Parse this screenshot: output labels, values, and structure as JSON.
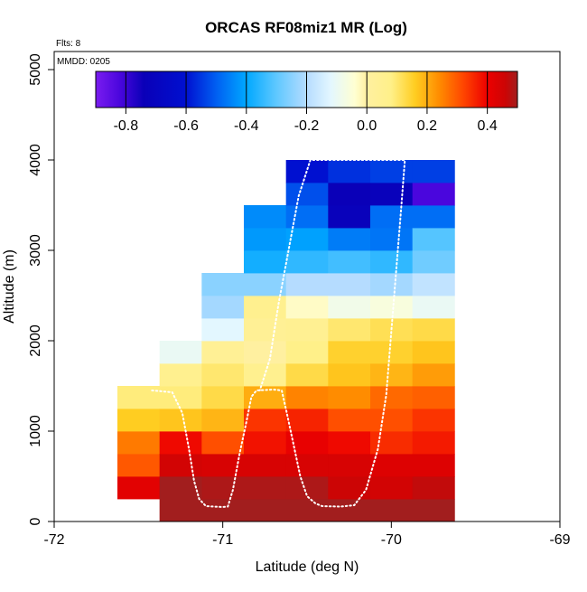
{
  "chart_data": {
    "type": "heatmap",
    "title": "ORCAS RF08miz1 MR (Log)",
    "annotations": {
      "flights": "Flts: 8",
      "date": "MMDD: 0205"
    },
    "xlabel": "Latitude (deg N)",
    "ylabel": "Altitude (m)",
    "xlim": [
      -72,
      -69
    ],
    "ylim": [
      0,
      5200
    ],
    "x_ticks": [
      -72,
      -71,
      -70,
      -69
    ],
    "y_ticks": [
      0,
      1000,
      2000,
      3000,
      4000,
      5000
    ],
    "cell_width_deg": 0.25,
    "cell_height_m": 250,
    "colorbar": {
      "min": -0.9,
      "max": 0.5,
      "ticks": [
        -0.8,
        -0.6,
        -0.4,
        -0.2,
        0.0,
        0.2,
        0.4
      ],
      "tick_labels": [
        "-0.8",
        "-0.6",
        "-0.4",
        "-0.2",
        "0.0",
        "0.2",
        "0.4"
      ],
      "stops": [
        [
          -0.9,
          "#7a1cf0"
        ],
        [
          -0.82,
          "#4a06dd"
        ],
        [
          -0.74,
          "#0a00b8"
        ],
        [
          -0.6,
          "#0010d0"
        ],
        [
          -0.5,
          "#005ff2"
        ],
        [
          -0.4,
          "#00a8ff"
        ],
        [
          -0.3,
          "#5fc8ff"
        ],
        [
          -0.2,
          "#b5dcff"
        ],
        [
          -0.12,
          "#e3f7ff"
        ],
        [
          -0.04,
          "#ffffd2"
        ],
        [
          0.0,
          "#fff0a0"
        ],
        [
          0.08,
          "#fff089"
        ],
        [
          0.16,
          "#ffcd21"
        ],
        [
          0.24,
          "#ff8c00"
        ],
        [
          0.32,
          "#ff4600"
        ],
        [
          0.4,
          "#ed0000"
        ],
        [
          0.46,
          "#cc0505"
        ],
        [
          0.5,
          "#a21e1e"
        ]
      ]
    },
    "cells": [
      {
        "lat": -71.5,
        "alt": 250,
        "v": 0.42
      },
      {
        "lat": -71.5,
        "alt": 500,
        "v": 0.3
      },
      {
        "lat": -71.5,
        "alt": 750,
        "v": 0.26
      },
      {
        "lat": -71.5,
        "alt": 1000,
        "v": 0.16
      },
      {
        "lat": -71.5,
        "alt": 1250,
        "v": 0.09
      },
      {
        "lat": -71.25,
        "alt": 0,
        "v": 0.5
      },
      {
        "lat": -71.25,
        "alt": 250,
        "v": 0.5
      },
      {
        "lat": -71.25,
        "alt": 500,
        "v": 0.45
      },
      {
        "lat": -71.25,
        "alt": 750,
        "v": 0.39
      },
      {
        "lat": -71.25,
        "alt": 1000,
        "v": 0.17
      },
      {
        "lat": -71.25,
        "alt": 1250,
        "v": 0.09
      },
      {
        "lat": -71.25,
        "alt": 1500,
        "v": 0.06
      },
      {
        "lat": -71.25,
        "alt": 1750,
        "v": -0.1
      },
      {
        "lat": -71.0,
        "alt": 0,
        "v": 0.5
      },
      {
        "lat": -71.0,
        "alt": 250,
        "v": 0.49
      },
      {
        "lat": -71.0,
        "alt": 500,
        "v": 0.44
      },
      {
        "lat": -71.0,
        "alt": 750,
        "v": 0.31
      },
      {
        "lat": -71.0,
        "alt": 1000,
        "v": 0.19
      },
      {
        "lat": -71.0,
        "alt": 1250,
        "v": 0.13
      },
      {
        "lat": -71.0,
        "alt": 1500,
        "v": 0.1
      },
      {
        "lat": -71.0,
        "alt": 1750,
        "v": 0.04
      },
      {
        "lat": -71.0,
        "alt": 2000,
        "v": -0.12
      },
      {
        "lat": -71.0,
        "alt": 2250,
        "v": -0.22
      },
      {
        "lat": -71.0,
        "alt": 2500,
        "v": -0.25
      },
      {
        "lat": -70.75,
        "alt": 0,
        "v": 0.5
      },
      {
        "lat": -70.75,
        "alt": 250,
        "v": 0.49
      },
      {
        "lat": -70.75,
        "alt": 500,
        "v": 0.44
      },
      {
        "lat": -70.75,
        "alt": 750,
        "v": 0.38
      },
      {
        "lat": -70.75,
        "alt": 1000,
        "v": 0.34
      },
      {
        "lat": -70.75,
        "alt": 1250,
        "v": 0.2
      },
      {
        "lat": -70.75,
        "alt": 1500,
        "v": 0.06
      },
      {
        "lat": -70.75,
        "alt": 1750,
        "v": 0.0
      },
      {
        "lat": -70.75,
        "alt": 2000,
        "v": 0.04
      },
      {
        "lat": -70.75,
        "alt": 2250,
        "v": 0.06
      },
      {
        "lat": -70.75,
        "alt": 2500,
        "v": -0.25
      },
      {
        "lat": -70.75,
        "alt": 2750,
        "v": -0.38
      },
      {
        "lat": -70.75,
        "alt": 3000,
        "v": -0.42
      },
      {
        "lat": -70.75,
        "alt": 3250,
        "v": -0.44
      },
      {
        "lat": -70.5,
        "alt": 0,
        "v": 0.5
      },
      {
        "lat": -70.5,
        "alt": 250,
        "v": 0.49
      },
      {
        "lat": -70.5,
        "alt": 500,
        "v": 0.44
      },
      {
        "lat": -70.5,
        "alt": 750,
        "v": 0.41
      },
      {
        "lat": -70.5,
        "alt": 1000,
        "v": 0.36
      },
      {
        "lat": -70.5,
        "alt": 1250,
        "v": 0.25
      },
      {
        "lat": -70.5,
        "alt": 1500,
        "v": 0.13
      },
      {
        "lat": -70.5,
        "alt": 1750,
        "v": 0.08
      },
      {
        "lat": -70.5,
        "alt": 2000,
        "v": 0.05
      },
      {
        "lat": -70.5,
        "alt": 2250,
        "v": -0.03
      },
      {
        "lat": -70.5,
        "alt": 2500,
        "v": -0.2
      },
      {
        "lat": -70.5,
        "alt": 2750,
        "v": -0.35
      },
      {
        "lat": -70.5,
        "alt": 3000,
        "v": -0.41
      },
      {
        "lat": -70.5,
        "alt": 3250,
        "v": -0.48
      },
      {
        "lat": -70.5,
        "alt": 3500,
        "v": -0.52
      },
      {
        "lat": -70.5,
        "alt": 3750,
        "v": -0.6
      },
      {
        "lat": -70.25,
        "alt": 0,
        "v": 0.5
      },
      {
        "lat": -70.25,
        "alt": 250,
        "v": 0.46
      },
      {
        "lat": -70.25,
        "alt": 500,
        "v": 0.44
      },
      {
        "lat": -70.25,
        "alt": 750,
        "v": 0.39
      },
      {
        "lat": -70.25,
        "alt": 1000,
        "v": 0.31
      },
      {
        "lat": -70.25,
        "alt": 1250,
        "v": 0.24
      },
      {
        "lat": -70.25,
        "alt": 1500,
        "v": 0.17
      },
      {
        "lat": -70.25,
        "alt": 1750,
        "v": 0.15
      },
      {
        "lat": -70.25,
        "alt": 2000,
        "v": 0.1
      },
      {
        "lat": -70.25,
        "alt": 2250,
        "v": -0.08
      },
      {
        "lat": -70.25,
        "alt": 2500,
        "v": -0.2
      },
      {
        "lat": -70.25,
        "alt": 2750,
        "v": -0.33
      },
      {
        "lat": -70.25,
        "alt": 3000,
        "v": -0.46
      },
      {
        "lat": -70.25,
        "alt": 3250,
        "v": -0.72
      },
      {
        "lat": -70.25,
        "alt": 3500,
        "v": -0.74
      },
      {
        "lat": -70.25,
        "alt": 3750,
        "v": -0.56
      },
      {
        "lat": -70.0,
        "alt": 0,
        "v": 0.5
      },
      {
        "lat": -70.0,
        "alt": 250,
        "v": 0.45
      },
      {
        "lat": -70.0,
        "alt": 500,
        "v": 0.43
      },
      {
        "lat": -70.0,
        "alt": 750,
        "v": 0.35
      },
      {
        "lat": -70.0,
        "alt": 1000,
        "v": 0.31
      },
      {
        "lat": -70.0,
        "alt": 1250,
        "v": 0.28
      },
      {
        "lat": -70.0,
        "alt": 1500,
        "v": 0.19
      },
      {
        "lat": -70.0,
        "alt": 1750,
        "v": 0.15
      },
      {
        "lat": -70.0,
        "alt": 2000,
        "v": 0.12
      },
      {
        "lat": -70.0,
        "alt": 2250,
        "v": -0.06
      },
      {
        "lat": -70.0,
        "alt": 2500,
        "v": -0.22
      },
      {
        "lat": -70.0,
        "alt": 2750,
        "v": -0.35
      },
      {
        "lat": -70.0,
        "alt": 3000,
        "v": -0.47
      },
      {
        "lat": -70.0,
        "alt": 3250,
        "v": -0.48
      },
      {
        "lat": -70.0,
        "alt": 3500,
        "v": -0.72
      },
      {
        "lat": -70.0,
        "alt": 3750,
        "v": -0.54
      },
      {
        "lat": -69.75,
        "alt": 0,
        "v": 0.5
      },
      {
        "lat": -69.75,
        "alt": 250,
        "v": 0.47
      },
      {
        "lat": -69.75,
        "alt": 500,
        "v": 0.43
      },
      {
        "lat": -69.75,
        "alt": 750,
        "v": 0.37
      },
      {
        "lat": -69.75,
        "alt": 1000,
        "v": 0.34
      },
      {
        "lat": -69.75,
        "alt": 1250,
        "v": 0.29
      },
      {
        "lat": -69.75,
        "alt": 1500,
        "v": 0.22
      },
      {
        "lat": -69.75,
        "alt": 1750,
        "v": 0.17
      },
      {
        "lat": -69.75,
        "alt": 2000,
        "v": 0.13
      },
      {
        "lat": -69.75,
        "alt": 2250,
        "v": -0.1
      },
      {
        "lat": -69.75,
        "alt": 2500,
        "v": -0.18
      },
      {
        "lat": -69.75,
        "alt": 2750,
        "v": -0.28
      },
      {
        "lat": -69.75,
        "alt": 3000,
        "v": -0.31
      },
      {
        "lat": -69.75,
        "alt": 3250,
        "v": -0.48
      },
      {
        "lat": -69.75,
        "alt": 3500,
        "v": -0.82
      },
      {
        "lat": -69.75,
        "alt": 3750,
        "v": -0.54
      }
    ],
    "flight_track": [
      [
        -71.42,
        1450
      ],
      [
        -71.3,
        1430
      ],
      [
        -71.24,
        1200
      ],
      [
        -71.2,
        800
      ],
      [
        -71.17,
        450
      ],
      [
        -71.14,
        250
      ],
      [
        -71.1,
        170
      ],
      [
        -71.0,
        160
      ],
      [
        -70.97,
        165
      ],
      [
        -70.94,
        350
      ],
      [
        -70.9,
        750
      ],
      [
        -70.86,
        1100
      ],
      [
        -70.83,
        1380
      ],
      [
        -70.8,
        1450
      ],
      [
        -70.7,
        1460
      ],
      [
        -70.65,
        1450
      ],
      [
        -70.62,
        1200
      ],
      [
        -70.58,
        850
      ],
      [
        -70.54,
        500
      ],
      [
        -70.5,
        280
      ],
      [
        -70.45,
        200
      ],
      [
        -70.41,
        170
      ],
      [
        -70.3,
        165
      ],
      [
        -70.22,
        180
      ],
      [
        -70.15,
        350
      ],
      [
        -70.08,
        800
      ],
      [
        -70.03,
        1400
      ],
      [
        -70.0,
        2100
      ],
      [
        -69.97,
        2800
      ],
      [
        -69.94,
        3500
      ],
      [
        -69.92,
        4000
      ],
      [
        -70.48,
        4000
      ],
      [
        -70.55,
        3600
      ],
      [
        -70.61,
        3000
      ],
      [
        -70.67,
        2400
      ],
      [
        -70.72,
        1800
      ],
      [
        -70.78,
        1450
      ]
    ]
  }
}
